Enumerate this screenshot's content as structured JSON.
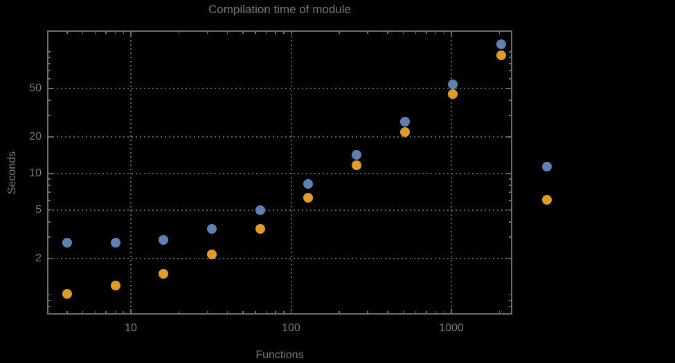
{
  "chart_data": {
    "type": "scatter",
    "title": "Compilation time of module",
    "xlabel": "Functions",
    "ylabel": "Seconds",
    "xscale": "log",
    "yscale": "log",
    "xlim": [
      3,
      2400
    ],
    "ylim": [
      0.69,
      150
    ],
    "grid": true,
    "x_major_ticks": [
      10,
      100,
      1000
    ],
    "x_major_tick_labels": [
      "10",
      "100",
      "1000"
    ],
    "x_minor_ticks": [
      4,
      5,
      6,
      7,
      8,
      9,
      20,
      30,
      40,
      50,
      60,
      70,
      80,
      90,
      200,
      300,
      400,
      500,
      600,
      700,
      800,
      900,
      2000
    ],
    "y_major_ticks": [
      2,
      5,
      10,
      20,
      50
    ],
    "y_major_tick_labels": [
      "2",
      "5",
      "10",
      "20",
      "50"
    ],
    "y_minor_ticks": [
      0.7,
      0.8,
      0.9,
      1,
      3,
      4,
      6,
      7,
      8,
      9,
      30,
      40,
      60,
      70,
      80,
      90,
      100
    ],
    "legend_position": "right-of-plot",
    "series": [
      {
        "name": "blue",
        "color": "#5e81b5",
        "points": [
          [
            4,
            2.7
          ],
          [
            8,
            2.7
          ],
          [
            16,
            2.85
          ],
          [
            32,
            3.5
          ],
          [
            64,
            5.0
          ],
          [
            128,
            8.2
          ],
          [
            256,
            14.2
          ],
          [
            512,
            26.5
          ],
          [
            1024,
            54
          ],
          [
            2048,
            115
          ]
        ]
      },
      {
        "name": "orange",
        "color": "#e19c24",
        "points": [
          [
            4,
            1.02
          ],
          [
            8,
            1.19
          ],
          [
            16,
            1.5
          ],
          [
            32,
            2.15
          ],
          [
            64,
            3.5
          ],
          [
            128,
            6.3
          ],
          [
            256,
            11.6
          ],
          [
            512,
            22
          ],
          [
            1024,
            45
          ],
          [
            2048,
            94
          ]
        ]
      }
    ]
  },
  "legend": {
    "labels_visible": false,
    "markers": [
      {
        "name": "legend-marker-blue",
        "color": "#5e81b5"
      },
      {
        "name": "legend-marker-orange",
        "color": "#e19c24"
      }
    ]
  },
  "colors": {
    "background": "#000000",
    "frame": "#6e6e6e",
    "grid": "#5e5e5e",
    "text": "#7a7a7a",
    "title": "#787878"
  }
}
